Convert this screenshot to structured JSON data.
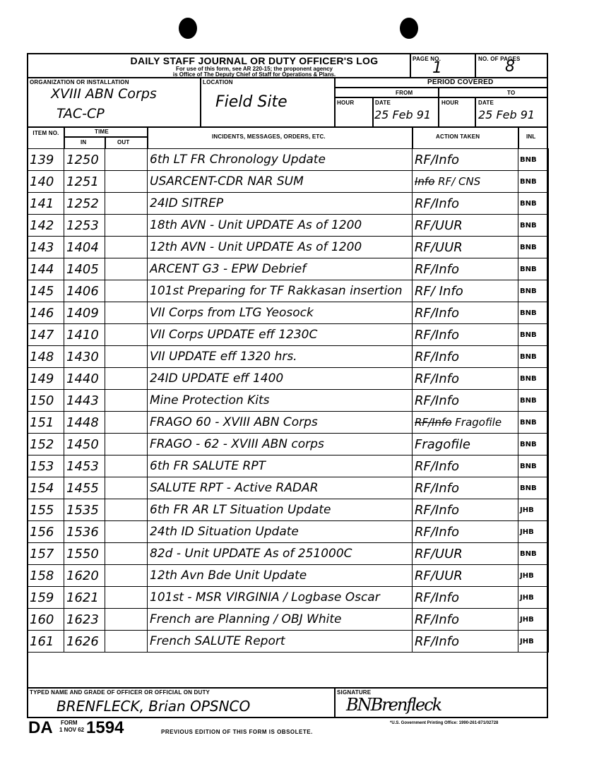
{
  "form": {
    "title": "DAILY STAFF JOURNAL OR DUTY OFFICER'S LOG",
    "subtitle_1": "For use of this form, see AR 220-15; the proponent agency",
    "subtitle_2": "is Office of The Deputy Chief of Staff for Operations & Plans.",
    "page_no_label": "PAGE NO.",
    "page_no": "1",
    "no_of_pages_label": "NO. OF PAGES",
    "no_of_pages": "8",
    "org_label": "ORGANIZATION OR INSTALLATION",
    "org_line1": "XVIII ABN Corps",
    "org_line2": "TAC-CP",
    "location_label": "LOCATION",
    "location": "Field Site",
    "period_label": "PERIOD COVERED",
    "from_label": "FROM",
    "to_label": "TO",
    "hour_label": "HOUR",
    "date_label": "DATE",
    "from_date": "25 Feb 91",
    "to_date": "25 Feb 91",
    "col_item": "ITEM NO.",
    "col_time": "TIME",
    "col_in": "IN",
    "col_out": "OUT",
    "col_incidents": "INCIDENTS, MESSAGES, ORDERS, ETC.",
    "col_action": "ACTION TAKEN",
    "col_inl": "INL"
  },
  "entries": [
    {
      "item": "139",
      "in": "1250",
      "out": "",
      "msg": "6th LT FR Chronology Update",
      "action": "RF/Info",
      "inl": "BNB"
    },
    {
      "item": "140",
      "in": "1251",
      "out": "",
      "msg": "USARCENT-CDR NAR SUM",
      "action_struck": "Info",
      "action": "RF/ CNS",
      "inl": "BNB"
    },
    {
      "item": "141",
      "in": "1252",
      "out": "",
      "msg": "24ID SITREP",
      "action": "RF/Info",
      "inl": "BNB"
    },
    {
      "item": "142",
      "in": "1253",
      "out": "",
      "msg": "18th AVN - Unit UPDATE As of 1200",
      "action": "RF/UUR",
      "inl": "BNB"
    },
    {
      "item": "143",
      "in": "1404",
      "out": "",
      "msg": "12th AVN - Unit UPDATE As of 1200",
      "action": "RF/UUR",
      "inl": "BNB"
    },
    {
      "item": "144",
      "in": "1405",
      "out": "",
      "msg": "ARCENT G3 - EPW Debrief",
      "action": "RF/Info",
      "inl": "BNB"
    },
    {
      "item": "145",
      "in": "1406",
      "out": "",
      "msg": "101st Preparing for TF Rakkasan insertion",
      "action": "RF/ Info",
      "inl": "BNB"
    },
    {
      "item": "146",
      "in": "1409",
      "out": "",
      "msg": "VII Corps from LTG Yeosock",
      "action": "RF/Info",
      "inl": "BNB"
    },
    {
      "item": "147",
      "in": "1410",
      "out": "",
      "msg": "VII Corps UPDATE eff 1230C",
      "action": "RF/Info",
      "inl": "BNB"
    },
    {
      "item": "148",
      "in": "1430",
      "out": "",
      "msg": "VII UPDATE eff 1320 hrs.",
      "action": "RF/Info",
      "inl": "BNB"
    },
    {
      "item": "149",
      "in": "1440",
      "out": "",
      "msg": "24ID UPDATE eff 1400",
      "action": "RF/Info",
      "inl": "BNB"
    },
    {
      "item": "150",
      "in": "1443",
      "out": "",
      "msg": "Mine Protection Kits",
      "action": "RF/Info",
      "inl": "BNB"
    },
    {
      "item": "151",
      "in": "1448",
      "out": "",
      "msg": "FRAGO 60 - XVIII ABN Corps",
      "action_struck": "RF/Info",
      "action": "Fragofile",
      "inl": "BNB"
    },
    {
      "item": "152",
      "in": "1450",
      "out": "",
      "msg": "FRAGO - 62 - XVIII ABN corps",
      "action": "Fragofile",
      "inl": "BNB"
    },
    {
      "item": "153",
      "in": "1453",
      "out": "",
      "msg": "6th FR SALUTE RPT",
      "action": "RF/Info",
      "inl": "BNB"
    },
    {
      "item": "154",
      "in": "1455",
      "out": "",
      "msg": "SALUTE RPT - Active RADAR",
      "action": "RF/Info",
      "inl": "BNB"
    },
    {
      "item": "155",
      "in": "1535",
      "out": "",
      "msg": "6th FR AR LT Situation Update",
      "action": "RF/Info",
      "inl": "JHB"
    },
    {
      "item": "156",
      "in": "1536",
      "out": "",
      "msg": "24th ID Situation Update",
      "action": "RF/Info",
      "inl": "JHB"
    },
    {
      "item": "157",
      "in": "1550",
      "out": "",
      "msg": "82d - Unit UPDATE As of 251000C",
      "action": "RF/UUR",
      "inl": "BNB"
    },
    {
      "item": "158",
      "in": "1620",
      "out": "",
      "msg": "12th Avn Bde Unit Update",
      "action": "RF/UUR",
      "inl": "JHB"
    },
    {
      "item": "159",
      "in": "1621",
      "out": "",
      "msg": "101st - MSR VIRGINIA / Logbase Oscar",
      "action": "RF/Info",
      "inl": "JHB"
    },
    {
      "item": "160",
      "in": "1623",
      "out": "",
      "msg": "French are Planning / OBJ White",
      "action": "RF/Info",
      "inl": "JHB"
    },
    {
      "item": "161",
      "in": "1626",
      "out": "",
      "msg": "French SALUTE Report",
      "action": "RF/Info",
      "inl": "JHB"
    }
  ],
  "footer": {
    "name_label": "TYPED NAME AND GRADE OF OFFICER OR OFFICIAL ON DUTY",
    "name": "BRENFLECK, Brian   OPSNCO",
    "signature_label": "SIGNATURE",
    "signature": "BNBrenfleck",
    "form_da": "DA",
    "form_word": "FORM",
    "form_date": "1 NOV 62",
    "form_number": "1594",
    "obsolete_note": "PREVIOUS EDITION OF THIS FORM IS OBSOLETE.",
    "gpo_note": "*U.S. Government Printing Office: 1990-261-871/02728"
  }
}
